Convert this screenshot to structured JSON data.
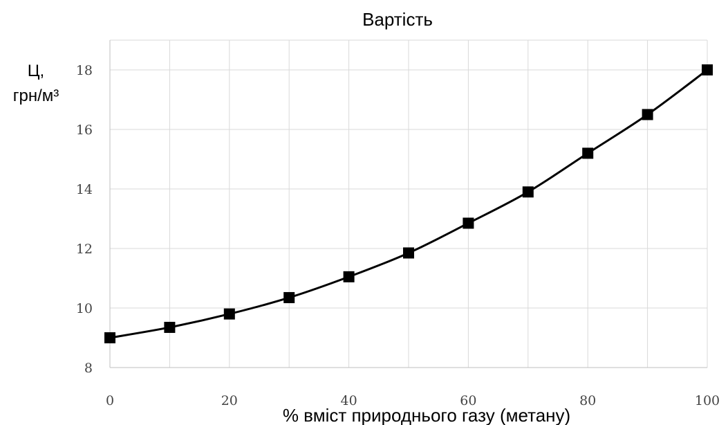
{
  "chart_data": {
    "type": "line",
    "title": "Вартість",
    "ylabel_line1": "Ц,",
    "ylabel_line2": "грн/м³",
    "xlabel": "% вміст природнього газу (метану)",
    "xlim": [
      0,
      100
    ],
    "ylim": [
      8,
      19
    ],
    "xticks": [
      0,
      20,
      40,
      60,
      80,
      100
    ],
    "yticks": [
      8,
      10,
      12,
      14,
      16,
      18
    ],
    "grid": true,
    "legend": "none",
    "series": [
      {
        "color": "#000000",
        "marker": "square",
        "x": [
          0,
          10,
          20,
          30,
          40,
          50,
          60,
          70,
          80,
          90,
          100
        ],
        "y": [
          9.0,
          9.35,
          9.8,
          10.35,
          11.05,
          11.85,
          12.85,
          13.9,
          15.2,
          16.5,
          18.0
        ]
      }
    ]
  }
}
